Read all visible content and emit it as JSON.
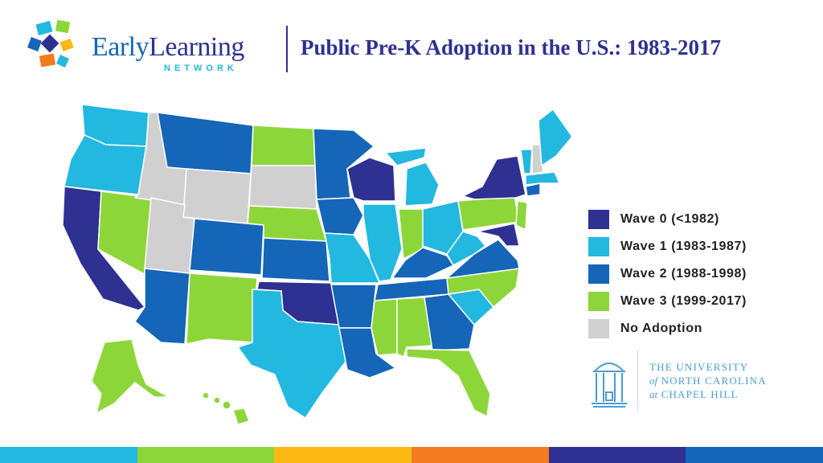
{
  "header": {
    "logo_word_1": "Early",
    "logo_word_2": "Learning",
    "logo_sub": "NETWORK",
    "title": "Public Pre-K Adoption in the U.S.: 1983-2017"
  },
  "legend": [
    {
      "label": "Wave 0 (<1982)",
      "color": "#2E3192"
    },
    {
      "label": "Wave 1 (1983-1987)",
      "color": "#22B8E0"
    },
    {
      "label": "Wave 2 (1988-1998)",
      "color": "#1565B8"
    },
    {
      "label": "Wave 3 (1999-2017)",
      "color": "#8DD63A"
    },
    {
      "label": "No Adoption",
      "color": "#D0D0D0"
    }
  ],
  "university": {
    "line1": "THE UNIVERSITY",
    "line2_prefix": "of",
    "line2_main": "NORTH CAROLINA",
    "line3_prefix": "at",
    "line3_main": "CHAPEL HILL"
  },
  "colors": {
    "wave0": "#2E3192",
    "wave1": "#22B8E0",
    "wave2": "#1565B8",
    "wave3": "#8DD63A",
    "none": "#D0D0D0"
  },
  "bottom_bar_colors": [
    "#22B8E0",
    "#8DD63A",
    "#FDB913",
    "#F47B20",
    "#2E3192",
    "#1565B8"
  ]
}
